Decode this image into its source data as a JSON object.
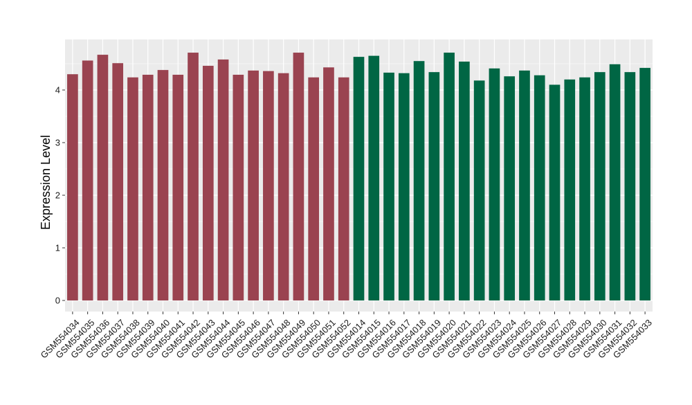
{
  "chart_data": {
    "type": "bar",
    "title": "",
    "xlabel": "",
    "ylabel": "Expression Level",
    "ylim": [
      0,
      4.85
    ],
    "yticks": [
      0,
      1,
      2,
      3,
      4
    ],
    "grid": true,
    "panel_background": "#ebebeb",
    "grid_color": "#ffffff",
    "categories": [
      "GSM554034",
      "GSM554035",
      "GSM554036",
      "GSM554037",
      "GSM554038",
      "GSM554039",
      "GSM554040",
      "GSM554041",
      "GSM554042",
      "GSM554043",
      "GSM554044",
      "GSM554045",
      "GSM554046",
      "GSM554047",
      "GSM554048",
      "GSM554049",
      "GSM554050",
      "GSM554051",
      "GSM554052",
      "GSM554014",
      "GSM554015",
      "GSM554016",
      "GSM554017",
      "GSM554018",
      "GSM554019",
      "GSM554020",
      "GSM554021",
      "GSM554022",
      "GSM554023",
      "GSM554024",
      "GSM554025",
      "GSM554026",
      "GSM554027",
      "GSM554028",
      "GSM554029",
      "GSM554030",
      "GSM554031",
      "GSM554032",
      "GSM554033"
    ],
    "values": [
      4.3,
      4.56,
      4.67,
      4.51,
      4.24,
      4.29,
      4.38,
      4.29,
      4.71,
      4.46,
      4.58,
      4.29,
      4.37,
      4.36,
      4.32,
      4.71,
      4.24,
      4.43,
      4.24,
      4.63,
      4.65,
      4.33,
      4.32,
      4.55,
      4.34,
      4.71,
      4.54,
      4.18,
      4.41,
      4.26,
      4.37,
      4.28,
      4.1,
      4.2,
      4.24,
      4.34,
      4.49,
      4.34,
      4.42
    ],
    "bar_colors": [
      "#9a4350",
      "#9a4350",
      "#9a4350",
      "#9a4350",
      "#9a4350",
      "#9a4350",
      "#9a4350",
      "#9a4350",
      "#9a4350",
      "#9a4350",
      "#9a4350",
      "#9a4350",
      "#9a4350",
      "#9a4350",
      "#9a4350",
      "#9a4350",
      "#9a4350",
      "#9a4350",
      "#9a4350",
      "#006644",
      "#006644",
      "#006644",
      "#006644",
      "#006644",
      "#006644",
      "#006644",
      "#006644",
      "#006644",
      "#006644",
      "#006644",
      "#006644",
      "#006644",
      "#006644",
      "#006644",
      "#006644",
      "#006644",
      "#006644",
      "#006644",
      "#006644"
    ]
  }
}
